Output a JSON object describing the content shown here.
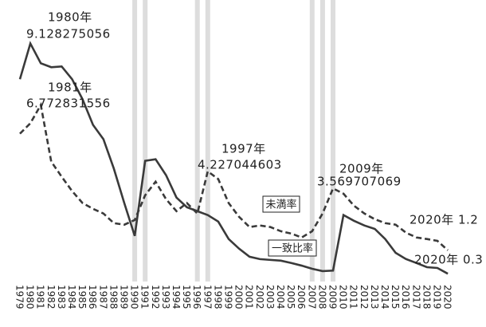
{
  "chart_data": {
    "type": "line",
    "categories": [
      "1979",
      "1980",
      "1981",
      "1982",
      "1983",
      "1984",
      "1985",
      "1986",
      "1987",
      "1988",
      "1989",
      "1990",
      "1991",
      "1992",
      "1993",
      "1994",
      "1995",
      "1996",
      "1997",
      "1998",
      "1999",
      "2000",
      "2001",
      "2002",
      "2003",
      "2004",
      "2005",
      "2006",
      "2007",
      "2008",
      "2009",
      "2010",
      "2011",
      "2012",
      "2013",
      "2014",
      "2015",
      "2016",
      "2017",
      "2018",
      "2019",
      "2020"
    ],
    "series": [
      {
        "name": "一致比率",
        "color": "#3a3a3a",
        "dash": false,
        "values": [
          7.76,
          9.128275056,
          8.37,
          8.22,
          8.25,
          7.76,
          6.99,
          6.01,
          5.46,
          4.33,
          3.01,
          1.75,
          4.63,
          4.69,
          4.08,
          3.22,
          2.85,
          2.7,
          2.55,
          2.3,
          1.63,
          1.26,
          0.95,
          0.86,
          0.83,
          0.8,
          0.71,
          0.61,
          0.49,
          0.4,
          0.42,
          2.55,
          2.33,
          2.15,
          2.02,
          1.63,
          1.1,
          0.86,
          0.71,
          0.55,
          0.52,
          0.3
        ]
      },
      {
        "name": "未満率",
        "color": "#3a3a3a",
        "dash": true,
        "values": [
          5.67,
          6.07,
          6.772831556,
          4.6,
          4.02,
          3.47,
          3.01,
          2.79,
          2.61,
          2.24,
          2.18,
          2.36,
          3.31,
          3.83,
          3.16,
          2.7,
          3.01,
          2.61,
          4.227044603,
          3.93,
          3.01,
          2.48,
          2.09,
          2.15,
          2.09,
          1.93,
          1.84,
          1.69,
          1.93,
          2.61,
          3.569707069,
          3.37,
          2.91,
          2.61,
          2.39,
          2.24,
          2.18,
          1.87,
          1.69,
          1.63,
          1.56,
          1.2
        ]
      }
    ],
    "ylim": [
      0,
      10.4
    ],
    "shaded_categories": [
      "1990",
      "1991",
      "1996",
      "1997",
      "2007",
      "2008",
      "2009"
    ],
    "shade_color": "#dddddd",
    "annotations": [
      {
        "lines": [
          "1980年",
          "9.128275056"
        ]
      },
      {
        "lines": [
          "1981年",
          "6.772831556"
        ]
      },
      {
        "lines": [
          "1997年",
          "4.227044603"
        ]
      },
      {
        "lines": [
          "2009年",
          "3.569707069"
        ]
      },
      {
        "lines": [
          "2020年 1.2"
        ]
      },
      {
        "lines": [
          "2020年 0.3"
        ]
      }
    ]
  }
}
